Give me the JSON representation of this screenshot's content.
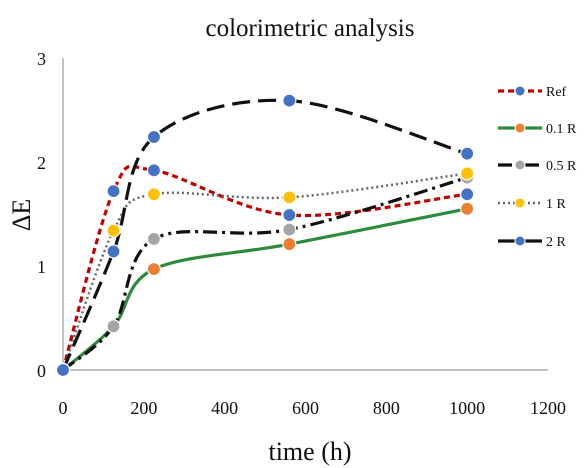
{
  "chart_data": {
    "type": "line",
    "title": "colorimetric analysis",
    "xlabel": "time (h)",
    "ylabel": "ΔE",
    "xlim": [
      0,
      1200
    ],
    "ylim": [
      0,
      3
    ],
    "xticks": [
      0,
      200,
      400,
      600,
      800,
      1000,
      1200
    ],
    "yticks": [
      0,
      1,
      2,
      3
    ],
    "grid": false,
    "legend_position": "right",
    "series": [
      {
        "name": "Ref",
        "color": "#c00000",
        "marker": "#4472c4",
        "dash": "dashed-short",
        "x": [
          0,
          125,
          225,
          560,
          1000
        ],
        "y": [
          0,
          1.72,
          1.92,
          1.49,
          1.69
        ]
      },
      {
        "name": "0.1 R",
        "color": "#2e8b3e",
        "marker": "#ed7d31",
        "dash": "solid",
        "x": [
          0,
          125,
          225,
          560,
          1000
        ],
        "y": [
          0,
          0.42,
          0.97,
          1.21,
          1.55
        ]
      },
      {
        "name": "0.5 R",
        "color": "#111111",
        "marker": "#a5a5a5",
        "dash": "dash-dot",
        "x": [
          0,
          125,
          225,
          560,
          1000
        ],
        "y": [
          0,
          0.42,
          1.26,
          1.35,
          1.85
        ]
      },
      {
        "name": "1 R",
        "color": "#666666",
        "marker": "#ffc000",
        "dash": "dotted",
        "x": [
          0,
          125,
          225,
          560,
          1000
        ],
        "y": [
          0,
          1.34,
          1.69,
          1.66,
          1.89
        ]
      },
      {
        "name": "2 R",
        "color": "#111111",
        "marker": "#4472c4",
        "dash": "long-dash",
        "x": [
          0,
          125,
          225,
          560,
          1000
        ],
        "y": [
          0,
          1.14,
          2.24,
          2.59,
          2.08
        ]
      }
    ]
  }
}
